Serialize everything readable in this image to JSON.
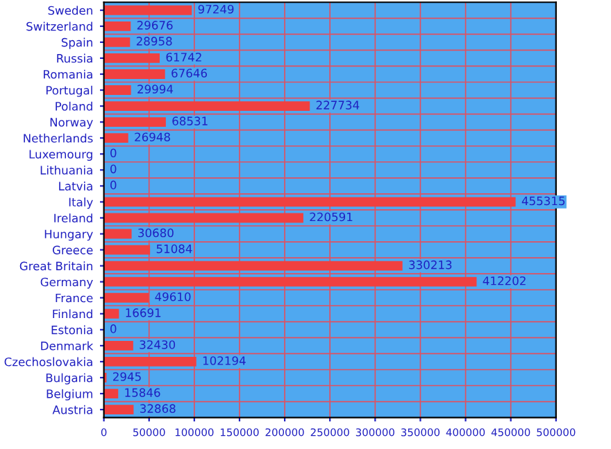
{
  "chart_data": {
    "type": "bar",
    "orientation": "horizontal",
    "categories": [
      "Sweden",
      "Switzerland",
      "Spain",
      "Russia",
      "Romania",
      "Portugal",
      "Poland",
      "Norway",
      "Netherlands",
      "Luxemourg",
      "Lithuania",
      "Latvia",
      "Italy",
      "Ireland",
      "Hungary",
      "Greece",
      "Great Britain",
      "Germany",
      "France",
      "Finland",
      "Estonia",
      "Denmark",
      "Czechoslovakia",
      "Bulgaria",
      "Belgium",
      "Austria"
    ],
    "values": [
      97249,
      29676,
      28958,
      61742,
      67646,
      29994,
      227734,
      68531,
      26948,
      0,
      0,
      0,
      455315,
      220591,
      30680,
      51084,
      330213,
      412202,
      49610,
      16691,
      0,
      32430,
      102194,
      2945,
      15846,
      32868
    ],
    "color": "#f04040",
    "data_labels": true,
    "xlim": [
      0,
      500000
    ],
    "xticks": [
      0,
      50000,
      100000,
      150000,
      200000,
      250000,
      300000,
      350000,
      400000,
      450000,
      500000
    ],
    "grid": true
  }
}
